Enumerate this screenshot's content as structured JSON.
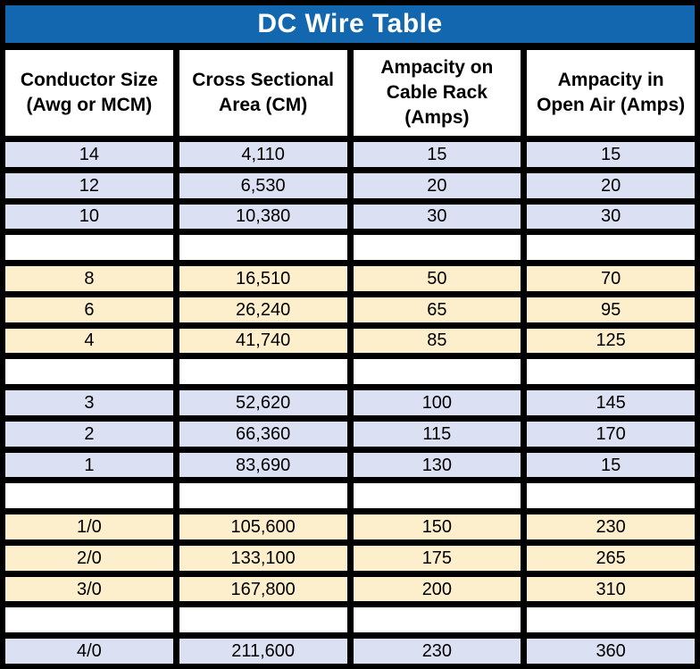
{
  "title": "DC Wire Table",
  "colors": {
    "title_bg": "#1267AE",
    "title_text": "#FFFFFF",
    "border": "#000000",
    "header_bg": "#FFFFFF",
    "row_blue": "#DBE1F2",
    "row_yellow": "#FDEFCB",
    "row_empty": "#FFFFFF",
    "cell_text": "#000000"
  },
  "table": {
    "headers": [
      {
        "lines": [
          "Conductor Size",
          "(Awg or MCM)"
        ]
      },
      {
        "lines": [
          "Cross Sectional",
          "Area (CM)"
        ]
      },
      {
        "lines": [
          "Ampacity on",
          "Cable Rack",
          "(Amps)"
        ]
      },
      {
        "lines": [
          "Ampacity in",
          "Open Air (Amps)"
        ]
      }
    ],
    "rows": [
      {
        "tone": "blue",
        "cells": [
          "14",
          "4,110",
          "15",
          "15"
        ]
      },
      {
        "tone": "blue",
        "cells": [
          "12",
          "6,530",
          "20",
          "20"
        ]
      },
      {
        "tone": "blue",
        "cells": [
          "10",
          "10,380",
          "30",
          "30"
        ]
      },
      {
        "tone": "empty",
        "cells": [
          "",
          "",
          "",
          ""
        ]
      },
      {
        "tone": "yellow",
        "cells": [
          "8",
          "16,510",
          "50",
          "70"
        ]
      },
      {
        "tone": "yellow",
        "cells": [
          "6",
          "26,240",
          "65",
          "95"
        ]
      },
      {
        "tone": "yellow",
        "cells": [
          "4",
          "41,740",
          "85",
          "125"
        ]
      },
      {
        "tone": "empty",
        "cells": [
          "",
          "",
          "",
          ""
        ]
      },
      {
        "tone": "blue",
        "cells": [
          "3",
          "52,620",
          "100",
          "145"
        ]
      },
      {
        "tone": "blue",
        "cells": [
          "2",
          "66,360",
          "115",
          "170"
        ]
      },
      {
        "tone": "blue",
        "cells": [
          "1",
          "83,690",
          "130",
          "15"
        ]
      },
      {
        "tone": "empty",
        "cells": [
          "",
          "",
          "",
          ""
        ]
      },
      {
        "tone": "yellow",
        "cells": [
          "1/0",
          "105,600",
          "150",
          "230"
        ]
      },
      {
        "tone": "yellow",
        "cells": [
          "2/0",
          "133,100",
          "175",
          "265"
        ]
      },
      {
        "tone": "yellow",
        "cells": [
          "3/0",
          "167,800",
          "200",
          "310"
        ]
      },
      {
        "tone": "empty",
        "cells": [
          "",
          "",
          "",
          ""
        ]
      },
      {
        "tone": "blue",
        "cells": [
          "4/0",
          "211,600",
          "230",
          "360"
        ]
      }
    ]
  },
  "chart_data": {
    "type": "table",
    "title": "DC Wire Table",
    "columns": [
      "Conductor Size (Awg or MCM)",
      "Cross Sectional Area (CM)",
      "Ampacity on Cable Rack (Amps)",
      "Ampacity in Open Air (Amps)"
    ],
    "rows": [
      [
        "14",
        4110,
        15,
        15
      ],
      [
        "12",
        6530,
        20,
        20
      ],
      [
        "10",
        10380,
        30,
        30
      ],
      [
        "8",
        16510,
        50,
        70
      ],
      [
        "6",
        26240,
        65,
        95
      ],
      [
        "4",
        41740,
        85,
        125
      ],
      [
        "3",
        52620,
        100,
        145
      ],
      [
        "2",
        66360,
        115,
        170
      ],
      [
        "1",
        83690,
        130,
        15
      ],
      [
        "1/0",
        105600,
        150,
        230
      ],
      [
        "2/0",
        133100,
        175,
        265
      ],
      [
        "3/0",
        167800,
        200,
        310
      ],
      [
        "4/0",
        211600,
        230,
        360
      ]
    ],
    "row_group_colors": {
      "blue": "#DBE1F2",
      "yellow": "#FDEFCB"
    },
    "legend_position": "none",
    "grid": true
  }
}
